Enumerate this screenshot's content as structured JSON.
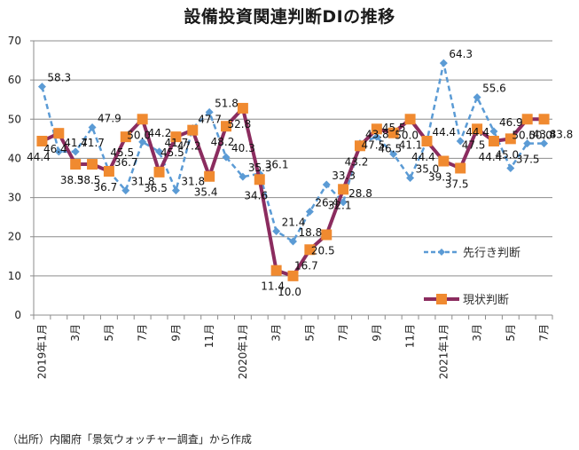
{
  "chart_data": {
    "type": "line",
    "title": "設備投資関連判断DIの推移",
    "xlabel": "",
    "ylabel": "",
    "ylim": [
      0,
      70
    ],
    "yticks": [
      0,
      10,
      20,
      30,
      40,
      50,
      60,
      70
    ],
    "grid": true,
    "legend_position": "bottom-right",
    "x": [
      "2019年1月",
      "2月",
      "3月",
      "4月",
      "5月",
      "6月",
      "7月",
      "8月",
      "9月",
      "10月",
      "11月",
      "12月",
      "2020年1月",
      "2月",
      "3月",
      "4月",
      "5月",
      "6月",
      "7月",
      "8月",
      "9月",
      "10月",
      "11月",
      "12月",
      "2021年1月",
      "2月",
      "3月",
      "4月",
      "5月",
      "6月",
      "7月"
    ],
    "xtick_labels": [
      "2019年1月",
      "",
      "3月",
      "",
      "5月",
      "",
      "7月",
      "",
      "9月",
      "",
      "11月",
      "",
      "2020年1月",
      "",
      "3月",
      "",
      "5月",
      "",
      "7月",
      "",
      "9月",
      "",
      "11月",
      "",
      "2021年1月",
      "",
      "3月",
      "",
      "5月",
      "",
      "7月"
    ],
    "series": [
      {
        "name": "先行き判断",
        "color": "#5b9bd5",
        "style": "dashed-diamond",
        "values": [
          58.3,
          41.7,
          41.7,
          47.9,
          36.7,
          31.8,
          44.2,
          41.7,
          31.8,
          47.7,
          51.8,
          40.3,
          35.3,
          36.1,
          21.4,
          18.8,
          26.4,
          33.3,
          28.8,
          43.8,
          45.5,
          41.1,
          35.0,
          44.4,
          64.3,
          44.4,
          55.6,
          46.9,
          37.5,
          43.8,
          43.8
        ]
      },
      {
        "name": "現状判断",
        "color": "#8b2c5f",
        "marker_color": "#f08a30",
        "style": "solid-square",
        "values": [
          44.4,
          46.4,
          38.5,
          38.5,
          36.7,
          45.5,
          50.0,
          36.5,
          45.5,
          47.2,
          35.4,
          48.2,
          52.8,
          34.6,
          11.4,
          10.0,
          16.7,
          20.5,
          32.1,
          43.2,
          47.5,
          46.5,
          50.0,
          44.4,
          39.3,
          37.5,
          47.5,
          44.4,
          45.0,
          50.0,
          50.0
        ]
      }
    ]
  },
  "source_note": "（出所）内閣府「景気ウォッチャー調査」から作成"
}
